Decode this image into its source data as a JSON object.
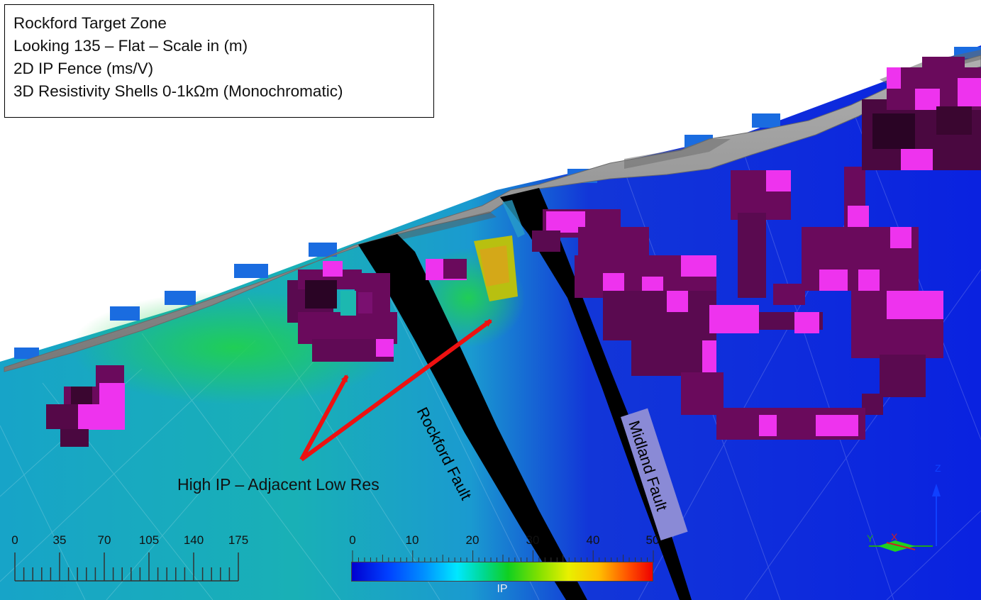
{
  "info": {
    "line1": "Rockford Target Zone",
    "line2": "Looking 135 – Flat – Scale in (m)",
    "line3": "2D IP Fence (ms/V)",
    "line4": "3D Resistivity Shells 0-1kΩm (Monochromatic)"
  },
  "annotation": "High IP – Adjacent Low Res",
  "faults": {
    "rockford": "Rockford Fault",
    "midland": "Midland Fault"
  },
  "scale_bar": {
    "ticks": [
      "0",
      "35",
      "70",
      "105",
      "140",
      "175"
    ]
  },
  "colorbar": {
    "label": "IP",
    "ticks": [
      "0",
      "10",
      "20",
      "30",
      "40",
      "50"
    ]
  },
  "axes": {
    "x": "X",
    "y": "Y",
    "z": "Z"
  },
  "colors": {
    "shell": "#6a0a5c",
    "shell_highlight": "#ee33ee",
    "surface": "#8e8e8e",
    "arrow": "#ee1111"
  }
}
